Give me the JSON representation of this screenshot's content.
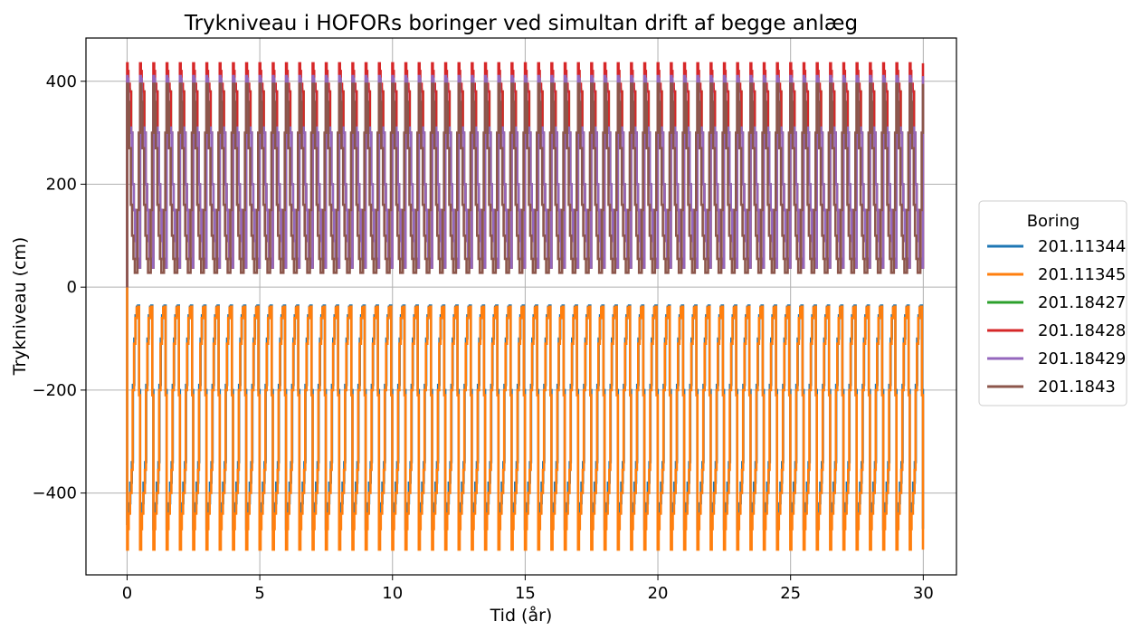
{
  "chart_data": {
    "type": "line",
    "title": "Trykniveau i HOFORs boringer ved simultan drift af begge anlæg",
    "xlabel": "Tid (år)",
    "ylabel": "Trykniveau (cm)",
    "xlim": [
      -1.55,
      31.25
    ],
    "ylim": [
      -559,
      484
    ],
    "xticks": [
      0,
      5,
      10,
      15,
      20,
      25,
      30
    ],
    "xtick_labels": [
      "0",
      "5",
      "10",
      "15",
      "20",
      "25",
      "30"
    ],
    "yticks": [
      -400,
      -200,
      0,
      200,
      400
    ],
    "ytick_labels": [
      "−400",
      "−200",
      "0",
      "200",
      "400"
    ],
    "grid": true,
    "legend": {
      "title": "Boring",
      "placement": "outside-right"
    },
    "cycle": {
      "years": 30,
      "period_years": 0.5,
      "note_x": "each series repeats a seasonal step pattern every half year"
    },
    "series": [
      {
        "name": "201.11344",
        "color": "#1f77b4",
        "cycle_x": [
          0,
          0.04,
          0.08,
          0.12,
          0.18,
          0.22,
          0.27,
          0.32,
          0.37,
          0.41,
          0.45,
          0.49
        ],
        "cycle_y": [
          -460,
          -440,
          -420,
          -380,
          -340,
          -190,
          -100,
          -55,
          -38,
          -36,
          -200,
          -470
        ]
      },
      {
        "name": "201.11345",
        "color": "#ff7f0e",
        "cycle_x": [
          0,
          0.03,
          0.06,
          0.11,
          0.17,
          0.21,
          0.26,
          0.31,
          0.36,
          0.41,
          0.45,
          0.49
        ],
        "cycle_y": [
          -510,
          -470,
          -440,
          -400,
          -355,
          -200,
          -110,
          -60,
          -40,
          -38,
          -210,
          -510
        ]
      },
      {
        "name": "201.18427",
        "color": "#2ca02c",
        "cycle_x": [
          0,
          0.05,
          0.1,
          0.15,
          0.2,
          0.25,
          0.3,
          0.35,
          0.4,
          0.45,
          0.49
        ],
        "cycle_y": [
          395,
          385,
          380,
          300,
          200,
          150,
          90,
          55,
          40,
          38,
          395
        ]
      },
      {
        "name": "201.18428",
        "color": "#d62728",
        "cycle_x": [
          0,
          0.02,
          0.05,
          0.1,
          0.15,
          0.2,
          0.25,
          0.3,
          0.35,
          0.4,
          0.45,
          0.49
        ],
        "cycle_y": [
          435,
          420,
          395,
          380,
          300,
          200,
          150,
          90,
          55,
          40,
          38,
          435
        ]
      },
      {
        "name": "201.18429",
        "color": "#9467bd",
        "cycle_x": [
          0,
          0.02,
          0.05,
          0.1,
          0.15,
          0.2,
          0.25,
          0.3,
          0.35,
          0.4,
          0.45,
          0.49
        ],
        "cycle_y": [
          410,
          405,
          270,
          310,
          300,
          200,
          150,
          90,
          55,
          40,
          38,
          410
        ]
      },
      {
        "name": "201.1843",
        "color": "#8c564b",
        "cycle_x": [
          0,
          0.04,
          0.08,
          0.14,
          0.19,
          0.24,
          0.29,
          0.34,
          0.39,
          0.44,
          0.49
        ],
        "cycle_y": [
          395,
          360,
          270,
          160,
          100,
          55,
          28,
          28,
          150,
          300,
          395
        ]
      }
    ]
  }
}
